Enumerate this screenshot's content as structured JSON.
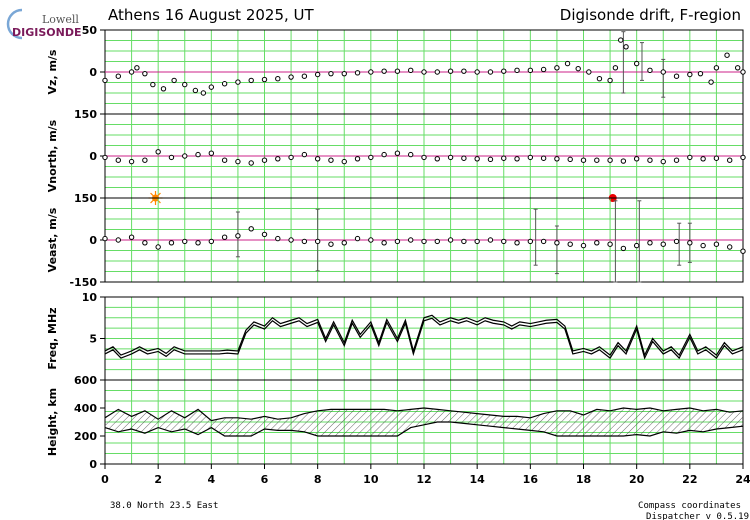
{
  "header": {
    "logo_line1": "Lowell",
    "logo_line2": "DIGISONDE",
    "title_left": "Athens  16 August 2025, UT",
    "title_right": "Digisonde drift, F-region"
  },
  "footer": {
    "location": "38.0 North   23.5 East",
    "coords_note": "Compass coordinates",
    "version": "Dispatcher v 0.5.19"
  },
  "colors": {
    "grid": "#66dd66",
    "zero_line": "#cc2288",
    "data": "#000000",
    "error_bar": "#555555",
    "marker_orange": "#ff8800",
    "marker_red": "#ee0000",
    "logo_accent": "#7a1a5a"
  },
  "chart_data": [
    {
      "type": "scatter",
      "name": "vz",
      "ylabel": "Vz, m/s",
      "ylim": [
        -50,
        50
      ],
      "yticks": [
        "50",
        "0"
      ],
      "grid": true,
      "x": [
        0.0,
        0.5,
        1.0,
        1.2,
        1.5,
        1.8,
        2.2,
        2.6,
        3.0,
        3.4,
        3.7,
        4.0,
        4.5,
        5.0,
        5.5,
        6.0,
        6.5,
        7.0,
        7.5,
        8.0,
        8.5,
        9.0,
        9.5,
        10.0,
        10.5,
        11.0,
        11.5,
        12.0,
        12.5,
        13.0,
        13.5,
        14.0,
        14.5,
        15.0,
        15.5,
        16.0,
        16.5,
        17.0,
        17.4,
        17.8,
        18.2,
        18.6,
        19.0,
        19.2,
        19.4,
        19.6,
        20.0,
        20.5,
        21.0,
        21.5,
        22.0,
        22.4,
        22.8,
        23.0,
        23.4,
        23.8,
        24.0
      ],
      "y": [
        -10,
        -5,
        0,
        5,
        -2,
        -15,
        -20,
        -10,
        -15,
        -22,
        -25,
        -18,
        -14,
        -12,
        -10,
        -9,
        -8,
        -6,
        -5,
        -3,
        -2,
        -2,
        -1,
        0,
        1,
        1,
        2,
        0,
        0,
        1,
        1,
        0,
        0,
        1,
        2,
        2,
        3,
        5,
        10,
        4,
        0,
        -8,
        -10,
        5,
        38,
        30,
        10,
        2,
        0,
        -5,
        -3,
        -2,
        -12,
        5,
        20,
        5,
        0
      ],
      "error_bars": [
        {
          "x": 19.5,
          "low": -25,
          "high": 48
        },
        {
          "x": 20.2,
          "low": -10,
          "high": 35
        },
        {
          "x": 21.0,
          "low": -30,
          "high": 15
        }
      ]
    },
    {
      "type": "scatter",
      "name": "vnorth",
      "ylabel": "Vnorth, m/s",
      "ylim": [
        -150,
        150
      ],
      "yticks": [
        "150",
        "0"
      ],
      "grid": true,
      "x": [
        0.0,
        0.5,
        1.0,
        1.5,
        2.0,
        2.5,
        3.0,
        3.5,
        4.0,
        4.5,
        5.0,
        5.5,
        6.0,
        6.5,
        7.0,
        7.5,
        8.0,
        8.5,
        9.0,
        9.5,
        10.0,
        10.5,
        11.0,
        11.5,
        12.0,
        12.5,
        13.0,
        13.5,
        14.0,
        14.5,
        15.0,
        15.5,
        16.0,
        16.5,
        17.0,
        17.5,
        18.0,
        18.5,
        19.0,
        19.5,
        20.0,
        20.5,
        21.0,
        21.5,
        22.0,
        22.5,
        23.0,
        23.5,
        24.0
      ],
      "y": [
        -5,
        -15,
        -20,
        -15,
        15,
        -5,
        0,
        5,
        10,
        -15,
        -20,
        -25,
        -15,
        -10,
        -5,
        5,
        -10,
        -15,
        -20,
        -10,
        -5,
        5,
        10,
        5,
        -5,
        -10,
        -5,
        -8,
        -10,
        -12,
        -8,
        -10,
        -5,
        -8,
        -10,
        -12,
        -15,
        -15,
        -15,
        -18,
        -10,
        -15,
        -20,
        -15,
        -5,
        -10,
        -8,
        -15,
        -5
      ],
      "markers": [
        {
          "x": 1.9,
          "kind": "sun"
        },
        {
          "x": 19.1,
          "kind": "dot"
        }
      ]
    },
    {
      "type": "scatter",
      "name": "veast",
      "ylabel": "Veast, m/s",
      "ylim": [
        -150,
        150
      ],
      "yticks": [
        "150",
        "0",
        "-150"
      ],
      "grid": true,
      "x": [
        0.0,
        0.5,
        1.0,
        1.5,
        2.0,
        2.5,
        3.0,
        3.5,
        4.0,
        4.5,
        5.0,
        5.5,
        6.0,
        6.5,
        7.0,
        7.5,
        8.0,
        8.5,
        9.0,
        9.5,
        10.0,
        10.5,
        11.0,
        11.5,
        12.0,
        12.5,
        13.0,
        13.5,
        14.0,
        14.5,
        15.0,
        15.5,
        16.0,
        16.5,
        17.0,
        17.5,
        18.0,
        18.5,
        19.0,
        19.5,
        20.0,
        20.5,
        21.0,
        21.5,
        22.0,
        22.5,
        23.0,
        23.5,
        24.0
      ],
      "y": [
        5,
        0,
        10,
        -10,
        -25,
        -10,
        -5,
        -10,
        -5,
        10,
        15,
        40,
        20,
        5,
        0,
        -5,
        -5,
        -15,
        -10,
        5,
        0,
        -10,
        -5,
        0,
        -5,
        -5,
        0,
        -5,
        -5,
        0,
        -5,
        -10,
        -5,
        -5,
        -10,
        -15,
        -20,
        -10,
        -15,
        -30,
        -20,
        -10,
        -15,
        -5,
        -10,
        -20,
        -15,
        -25,
        -40
      ],
      "error_bars": [
        {
          "x": 5.0,
          "low": -60,
          "high": 100
        },
        {
          "x": 8.0,
          "low": -110,
          "high": 110
        },
        {
          "x": 16.2,
          "low": -90,
          "high": 110
        },
        {
          "x": 17.0,
          "low": -120,
          "high": 50
        },
        {
          "x": 19.2,
          "low": -150,
          "high": 140
        },
        {
          "x": 20.1,
          "low": -150,
          "high": 140
        },
        {
          "x": 21.6,
          "low": -90,
          "high": 60
        },
        {
          "x": 22.0,
          "low": -80,
          "high": 60
        }
      ]
    },
    {
      "type": "line",
      "name": "freq",
      "ylabel": "Freq, MHz",
      "ylim": [
        0,
        10
      ],
      "yticks": [
        "10",
        "5"
      ],
      "grid": true,
      "x": [
        0.0,
        0.3,
        0.6,
        1.0,
        1.3,
        1.6,
        2.0,
        2.3,
        2.6,
        3.0,
        3.3,
        3.6,
        4.0,
        4.3,
        4.6,
        5.0,
        5.3,
        5.6,
        6.0,
        6.3,
        6.6,
        7.0,
        7.3,
        7.6,
        8.0,
        8.3,
        8.6,
        9.0,
        9.3,
        9.6,
        10.0,
        10.3,
        10.6,
        11.0,
        11.3,
        11.6,
        12.0,
        12.3,
        12.6,
        13.0,
        13.3,
        13.6,
        14.0,
        14.3,
        14.6,
        15.0,
        15.3,
        15.6,
        16.0,
        16.3,
        16.6,
        17.0,
        17.3,
        17.6,
        18.0,
        18.3,
        18.6,
        19.0,
        19.3,
        19.6,
        20.0,
        20.3,
        20.6,
        21.0,
        21.3,
        21.6,
        22.0,
        22.3,
        22.6,
        23.0,
        23.3,
        23.6,
        24.0
      ],
      "y": [
        3.5,
        4.0,
        3.0,
        3.5,
        4.0,
        3.5,
        3.8,
        3.2,
        4.0,
        3.5,
        3.5,
        3.5,
        3.5,
        3.5,
        3.6,
        3.5,
        6.0,
        7.0,
        6.5,
        7.5,
        6.8,
        7.2,
        7.5,
        6.8,
        7.3,
        5.0,
        7.0,
        4.5,
        7.2,
        5.5,
        7.0,
        4.5,
        7.3,
        5.0,
        7.2,
        3.5,
        7.5,
        7.8,
        7.0,
        7.5,
        7.2,
        7.5,
        7.0,
        7.5,
        7.2,
        7.0,
        6.5,
        7.0,
        6.8,
        7.0,
        7.2,
        7.3,
        6.5,
        3.5,
        3.8,
        3.5,
        4.0,
        3.0,
        4.5,
        3.5,
        6.5,
        3.0,
        5.0,
        3.5,
        4.0,
        3.0,
        5.5,
        3.5,
        4.0,
        3.0,
        4.5,
        3.5,
        4.0
      ]
    },
    {
      "type": "area",
      "name": "height",
      "ylabel": "Height, km",
      "ylim": [
        0,
        600
      ],
      "yticks": [
        "600",
        "400",
        "200",
        "0"
      ],
      "grid": true,
      "x": [
        0.0,
        0.5,
        1.0,
        1.5,
        2.0,
        2.5,
        3.0,
        3.5,
        4.0,
        4.5,
        5.0,
        5.5,
        6.0,
        6.5,
        7.0,
        7.5,
        8.0,
        8.5,
        9.0,
        9.5,
        10.0,
        10.5,
        11.0,
        11.5,
        12.0,
        12.5,
        13.0,
        13.5,
        14.0,
        14.5,
        15.0,
        15.5,
        16.0,
        16.5,
        17.0,
        17.5,
        18.0,
        18.5,
        19.0,
        19.5,
        20.0,
        20.5,
        21.0,
        21.5,
        22.0,
        22.5,
        23.0,
        23.5,
        24.0
      ],
      "upper": [
        330,
        390,
        340,
        380,
        320,
        380,
        330,
        390,
        310,
        330,
        330,
        320,
        340,
        320,
        330,
        360,
        380,
        390,
        390,
        390,
        390,
        390,
        380,
        390,
        400,
        390,
        380,
        370,
        360,
        350,
        340,
        340,
        330,
        360,
        380,
        380,
        350,
        390,
        380,
        400,
        390,
        400,
        380,
        390,
        400,
        380,
        390,
        370,
        380
      ],
      "lower": [
        260,
        230,
        250,
        220,
        260,
        230,
        250,
        210,
        260,
        200,
        200,
        200,
        250,
        240,
        240,
        230,
        200,
        200,
        200,
        200,
        200,
        200,
        200,
        260,
        280,
        300,
        300,
        290,
        280,
        270,
        260,
        250,
        240,
        230,
        200,
        200,
        200,
        200,
        200,
        200,
        210,
        200,
        230,
        220,
        240,
        230,
        250,
        260,
        270
      ]
    }
  ],
  "x_axis": {
    "ticks": [
      "0",
      "2",
      "4",
      "6",
      "8",
      "10",
      "12",
      "14",
      "16",
      "18",
      "20",
      "22",
      "24"
    ]
  }
}
